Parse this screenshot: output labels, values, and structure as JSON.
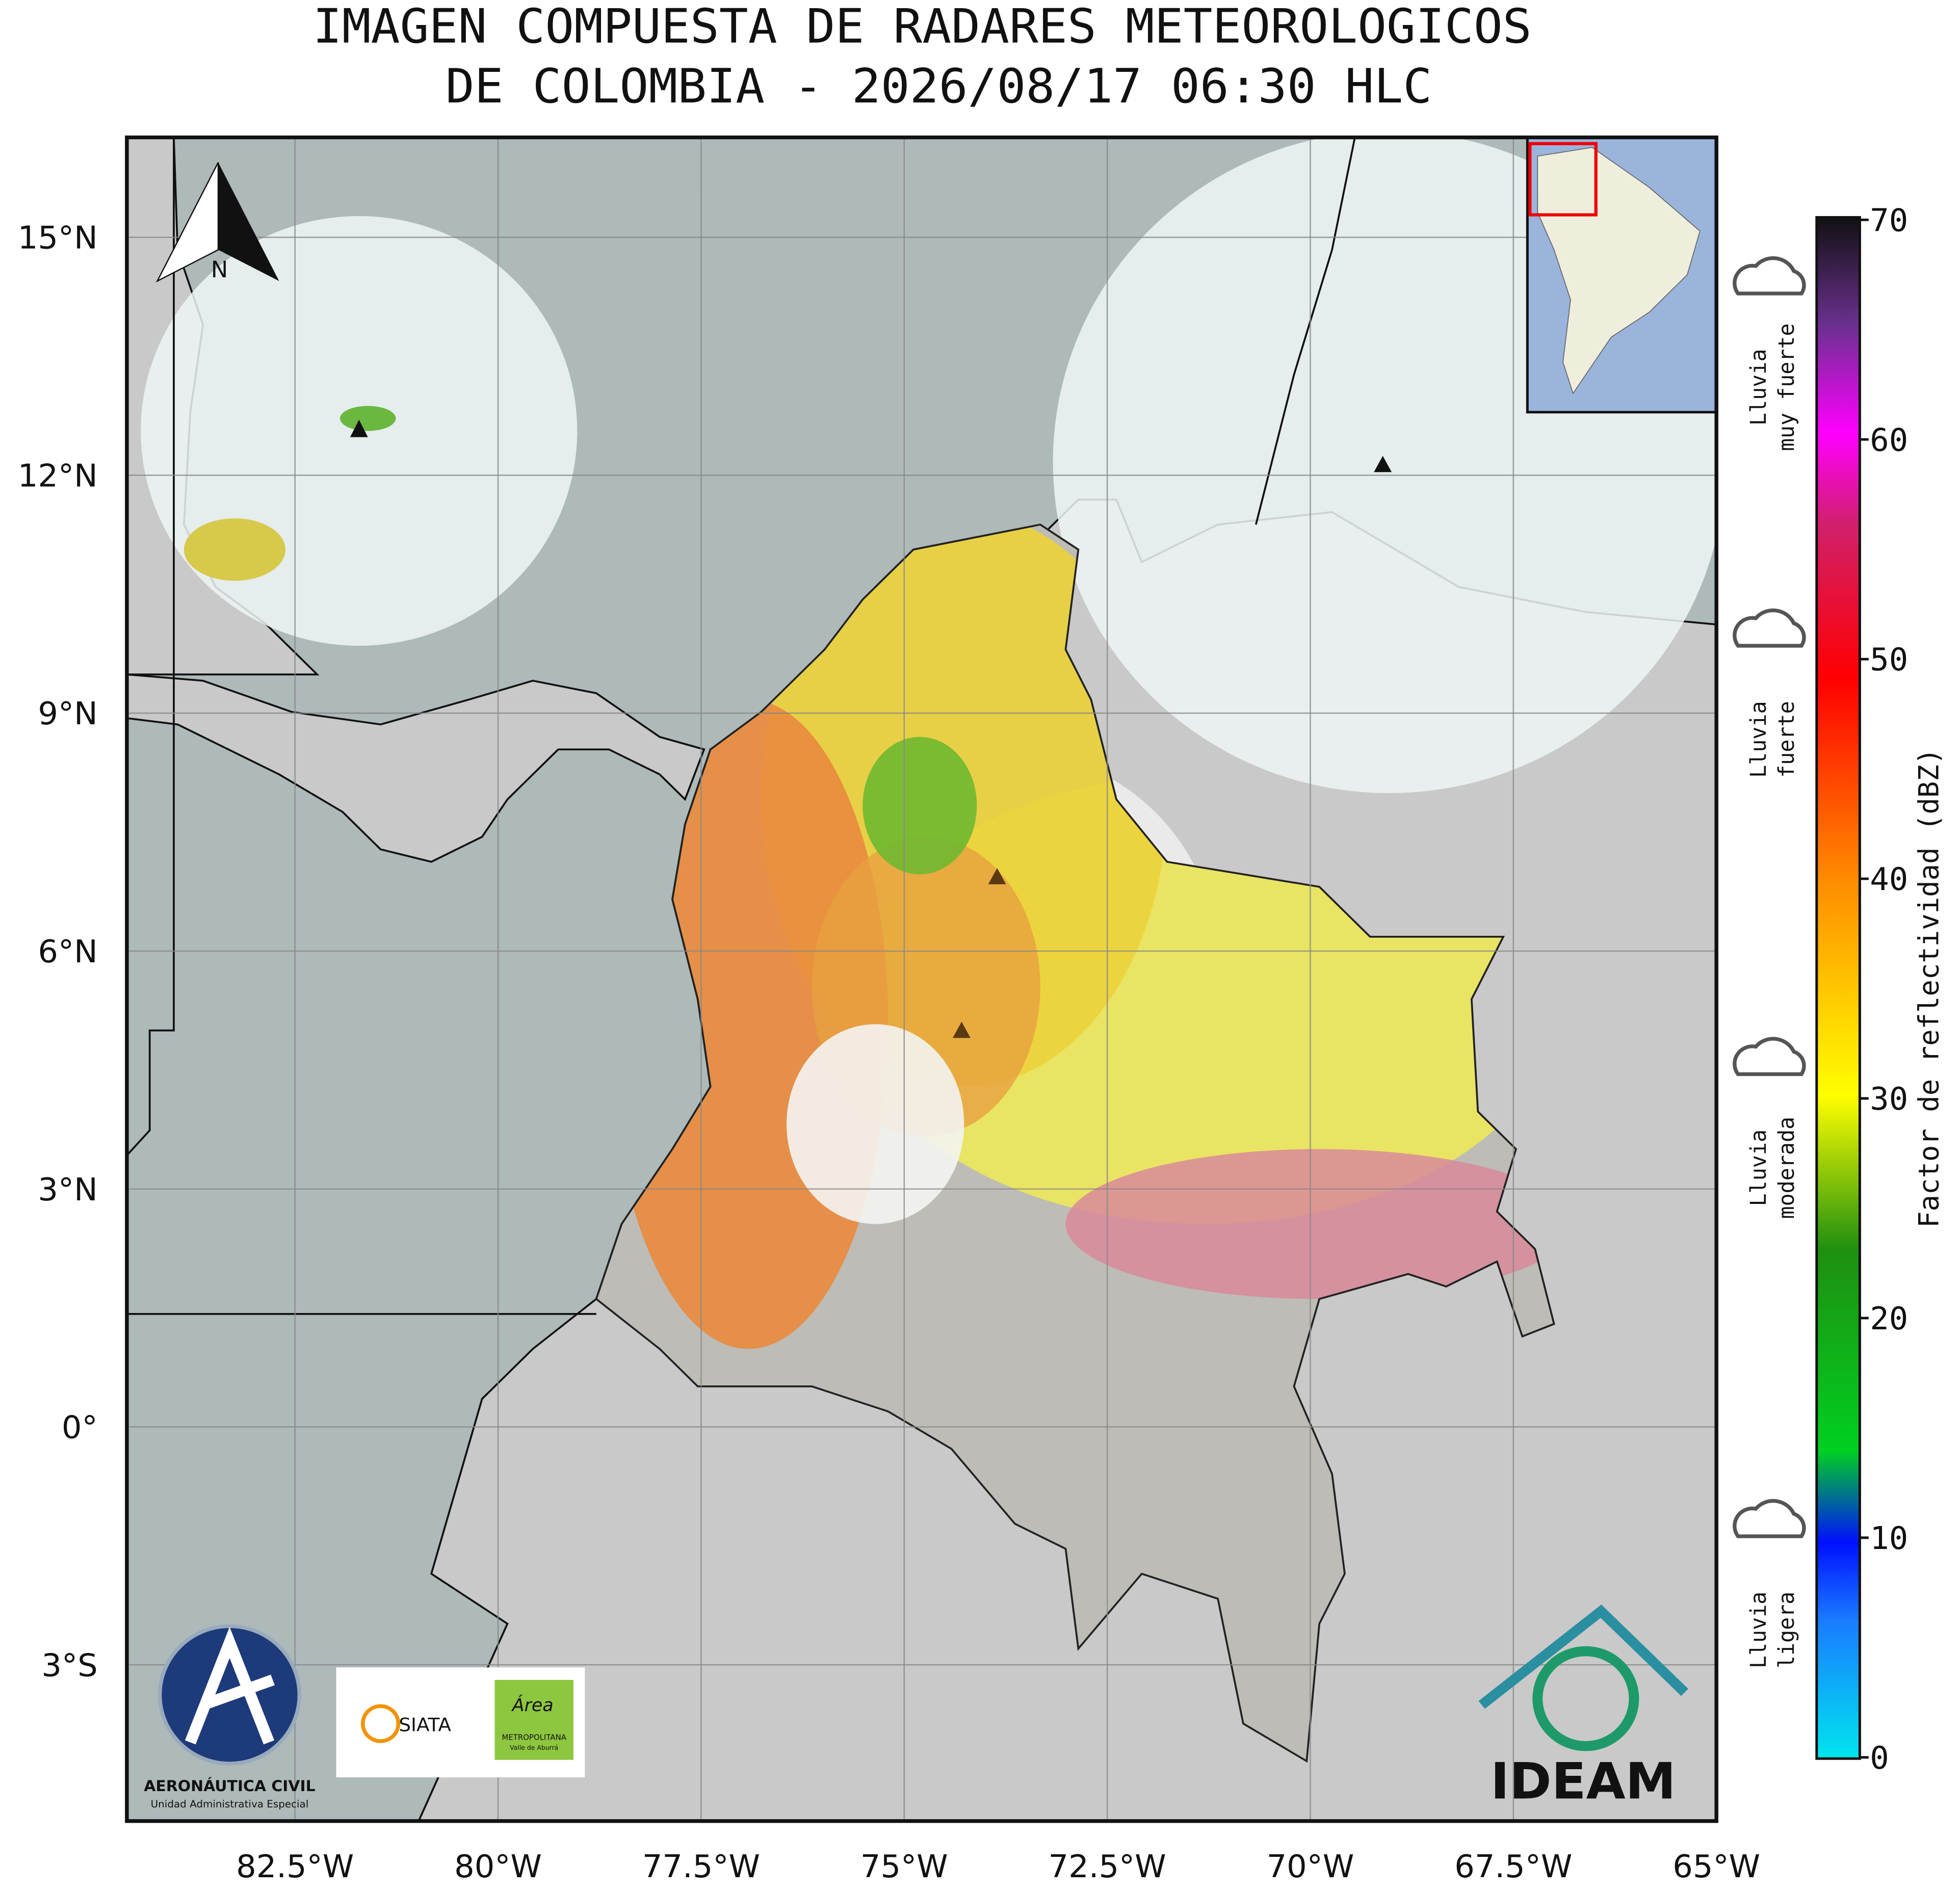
{
  "title": [
    "IMAGEN COMPUESTA DE RADARES METEOROLOGICOS",
    "DE COLOMBIA - 2026/08/17 06:30 HLC"
  ],
  "map": {
    "xlim": [
      -84.57,
      -65
    ],
    "ylim": [
      -4.97,
      16.26
    ],
    "xticks": [
      {
        "value": -82.5,
        "label": "82.5°W"
      },
      {
        "value": -80,
        "label": "80°W"
      },
      {
        "value": -77.5,
        "label": "77.5°W"
      },
      {
        "value": -75,
        "label": "75°W"
      },
      {
        "value": -72.5,
        "label": "72.5°W"
      },
      {
        "value": -70,
        "label": "70°W"
      },
      {
        "value": -67.5,
        "label": "67.5°W"
      },
      {
        "value": -65,
        "label": "65°W"
      }
    ],
    "yticks": [
      {
        "value": 15,
        "label": "15°N"
      },
      {
        "value": 12,
        "label": "12°N"
      },
      {
        "value": 9,
        "label": "9°N"
      },
      {
        "value": 6,
        "label": "6°N"
      },
      {
        "value": 3,
        "label": "3°N"
      },
      {
        "value": 0,
        "label": "0°"
      },
      {
        "value": -3,
        "label": "3°S"
      }
    ],
    "grid": true,
    "north_label": "N"
  },
  "colorbar": {
    "label": "Factor de reflectividad (dBZ)",
    "lim": [
      0,
      70
    ],
    "ticks": [
      0,
      10,
      20,
      30,
      40,
      50,
      60,
      70
    ]
  },
  "rain_levels": [
    {
      "lines": [
        "Lluvia",
        "ligera"
      ]
    },
    {
      "lines": [
        "Lluvia",
        "moderada"
      ]
    },
    {
      "lines": [
        "Lluvia",
        "fuerte"
      ]
    },
    {
      "lines": [
        "Lluvia",
        "muy fuerte"
      ]
    }
  ],
  "logos": {
    "aerocivil": [
      "AERONÁUTICA CIVIL",
      "Unidad Administrativa Especial"
    ],
    "siata": "SIATA",
    "area": [
      "Área",
      "METROPOLITANA",
      "Valle de Aburrá"
    ],
    "ideam": "IDEAM"
  }
}
